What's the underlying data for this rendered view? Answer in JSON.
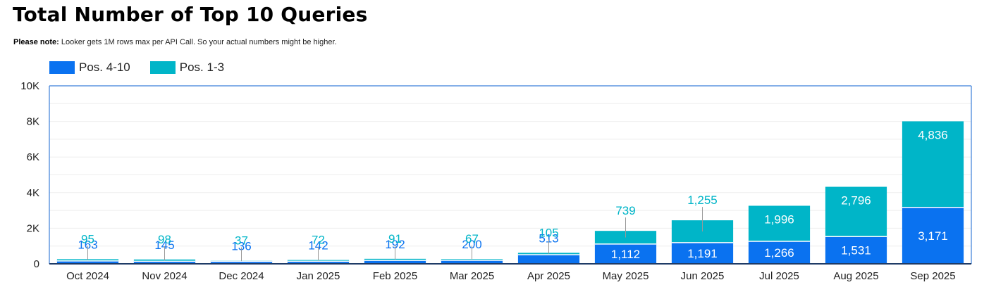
{
  "header": {
    "title": "Total Number of Top 10 Queries",
    "note_bold": "Please note:",
    "note_text": " Looker gets 1M rows max per API Call. So your actual numbers might be higher."
  },
  "colors": {
    "pos_4_10": "#0a72f0",
    "pos_1_3": "#00b5c8",
    "axis": "#3b7fd9",
    "grid": "#eeeeee",
    "baseline": "#1f3b66"
  },
  "chart_data": {
    "type": "bar",
    "stacked": true,
    "title": "Total Number of Top 10 Queries",
    "categories": [
      "Oct 2024",
      "Nov 2024",
      "Dec 2024",
      "Jan 2025",
      "Feb 2025",
      "Mar 2025",
      "Apr 2025",
      "May 2025",
      "Jun 2025",
      "Jul 2025",
      "Aug 2025",
      "Sep 2025"
    ],
    "series": [
      {
        "name": "Pos. 4-10",
        "values": [
          163,
          145,
          136,
          142,
          192,
          200,
          513,
          1112,
          1191,
          1266,
          1531,
          3171
        ]
      },
      {
        "name": "Pos. 1-3",
        "values": [
          95,
          98,
          37,
          72,
          91,
          67,
          105,
          739,
          1255,
          1996,
          2796,
          4836
        ]
      }
    ],
    "value_labels": {
      "Pos. 4-10": [
        "163",
        "145",
        "136",
        "142",
        "192",
        "200",
        "513",
        "1,112",
        "1,191",
        "1,266",
        "1,531",
        "3,171"
      ],
      "Pos. 1-3": [
        "95",
        "98",
        "37",
        "72",
        "91",
        "67",
        "105",
        "739",
        "1,255",
        "1,996",
        "2,796",
        "4,836"
      ]
    },
    "ylim": [
      0,
      10000
    ],
    "yticks": [
      0,
      2000,
      4000,
      6000,
      8000,
      10000
    ],
    "ytick_labels": [
      "0",
      "2K",
      "4K",
      "6K",
      "8K",
      "10K"
    ],
    "grid": true,
    "legend_position": "top-left"
  }
}
